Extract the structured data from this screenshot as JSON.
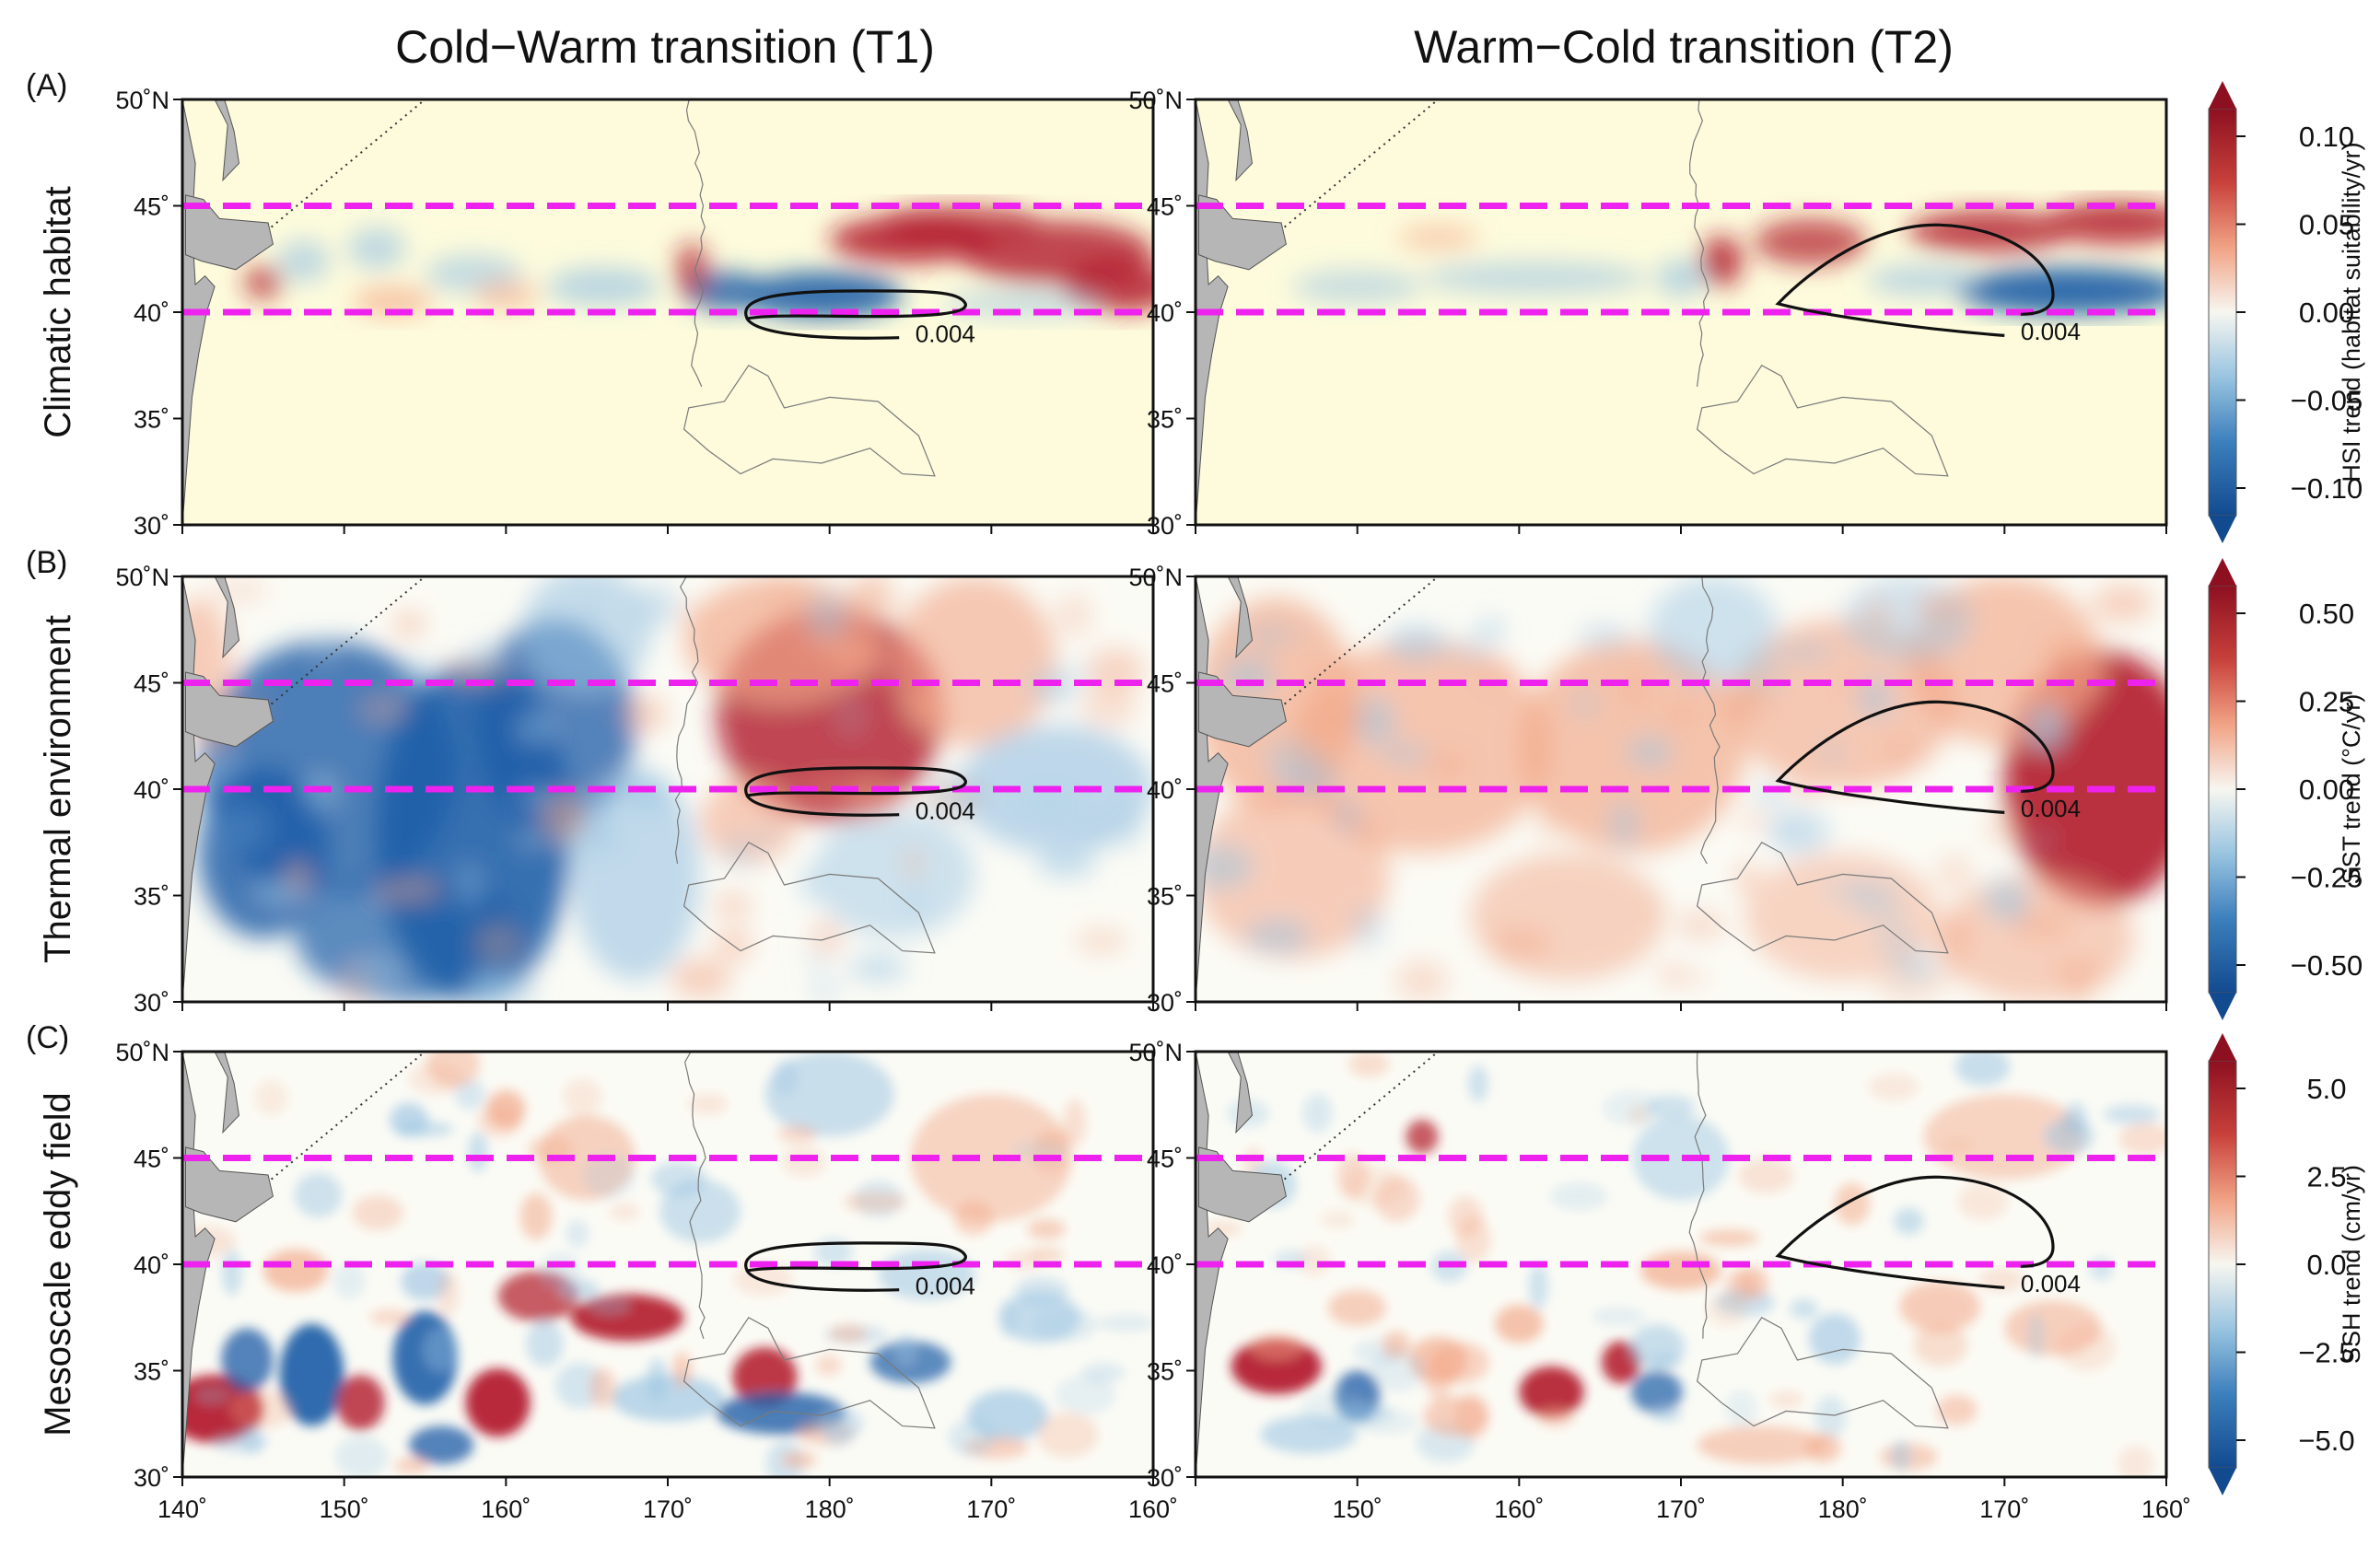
{
  "figure": {
    "col_titles": [
      "Cold−Warm transition (T1)",
      "Warm−Cold transition (T2)"
    ],
    "colors": {
      "cold": "#1f5ea8",
      "warm": "#b2182b",
      "neutral": "#fbfbf5",
      "habitat_background": "#fdfbdc",
      "land": "#b6b6b6",
      "band_line": "#ee22ee",
      "contour": "#111111"
    }
  },
  "chart_data": [
    {
      "type": "heatmap",
      "panel_tag": "(A)",
      "row_label": "Climatic habitat",
      "variable": "HSI trend",
      "colorbar_label": "HSI trend (habitat suitability/yr)",
      "colorbar_ticks": [
        "0.10",
        "0.05",
        "0.00",
        "−0.05",
        "−0.10"
      ],
      "colorbar_range": [
        -0.1,
        0.1
      ],
      "x_ticks": [
        "140˚",
        "150˚",
        "160˚",
        "170˚",
        "180˚",
        "170˚",
        "160˚"
      ],
      "x_range_deg_east": [
        140,
        200
      ],
      "y_ticks": [
        "50˚N",
        "45˚",
        "40˚",
        "35˚",
        "30˚"
      ],
      "y_range_deg_north": [
        30,
        50
      ],
      "band_lat_north": [
        40,
        45
      ],
      "contour_label": "0.004",
      "panels": [
        {
          "period": "T1",
          "pattern": "warm patches 178E-200E near 41-44N; cold band 175E-185E along 40-41N; mixed 143E-170E along 40-43N"
        },
        {
          "period": "T2",
          "pattern": "warm band 172E-200E near 42-45N; strong cold band 188E-200E at 40-42N"
        }
      ]
    },
    {
      "type": "heatmap",
      "panel_tag": "(B)",
      "row_label": "Thermal environment",
      "variable": "SST trend",
      "colorbar_label": "SST trend (°C/yr)",
      "colorbar_ticks": [
        "0.50",
        "0.25",
        "0.00",
        "−0.25",
        "−0.50"
      ],
      "colorbar_range": [
        -0.5,
        0.5
      ],
      "x_ticks": [
        "140˚",
        "150˚",
        "160˚",
        "170˚",
        "180˚",
        "170˚",
        "160˚"
      ],
      "x_range_deg_east": [
        140,
        200
      ],
      "y_ticks": [
        "50˚N",
        "45˚",
        "40˚",
        "35˚",
        "30˚"
      ],
      "y_range_deg_north": [
        30,
        50
      ],
      "band_lat_north": [
        40,
        45
      ],
      "contour_label": "0.004",
      "panels": [
        {
          "period": "T1",
          "pattern": "cooling west of 170E (strongest 143E-165E, 34-44N); warming 170E-190E north of 38N; cooling east of 190E near 38-42N"
        },
        {
          "period": "T2",
          "pattern": "basin-wide warming, strongest east of 188E around 36-44N"
        }
      ]
    },
    {
      "type": "heatmap",
      "panel_tag": "(C)",
      "row_label": "Mesoscale eddy field",
      "variable": "SSH trend",
      "colorbar_label": "SSH trend (cm/yr)",
      "colorbar_ticks": [
        "5.0",
        "2.5",
        "0.0",
        "−2.5",
        "−5.0"
      ],
      "colorbar_range": [
        -5.0,
        5.0
      ],
      "x_ticks": [
        "140˚",
        "150˚",
        "160˚",
        "170˚",
        "180˚",
        "170˚",
        "160˚"
      ],
      "x_range_deg_east": [
        140,
        200
      ],
      "y_ticks": [
        "50˚N",
        "45˚",
        "40˚",
        "35˚",
        "30˚"
      ],
      "y_range_deg_north": [
        30,
        50
      ],
      "band_lat_north": [
        40,
        45
      ],
      "contour_label": "0.004",
      "panels": [
        {
          "period": "T1",
          "pattern": "strong eddy dipoles south of 40N between 140E and 185E"
        },
        {
          "period": "T2",
          "pattern": "weaker eddies; positive cores near 145E, 162E, 166E around 33-37N"
        }
      ]
    }
  ]
}
